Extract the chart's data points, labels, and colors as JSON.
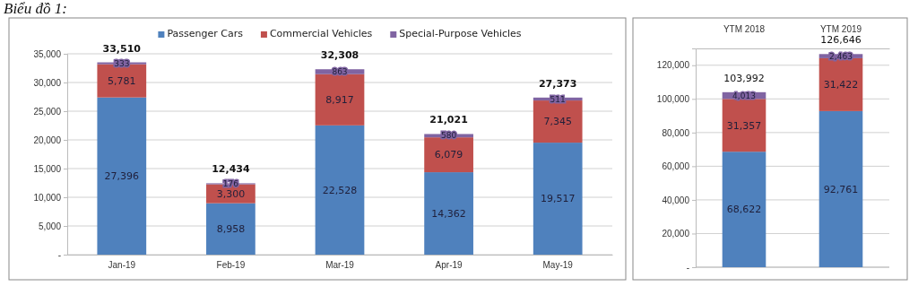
{
  "chart_data": [
    {
      "type": "bar",
      "title": "Biểu đồ 1:",
      "stacked": true,
      "categories": [
        "Jan-19",
        "Feb-19",
        "Mar-19",
        "Apr-19",
        "May-19"
      ],
      "series": [
        {
          "name": "Passenger Cars",
          "color": "#4f81bd",
          "values": [
            27396,
            8958,
            22528,
            14362,
            19517
          ],
          "value_labels": [
            "27,396",
            "8,958",
            "22,528",
            "14,362",
            "19,517"
          ]
        },
        {
          "name": "Commercial Vehicles",
          "color": "#c0504d",
          "values": [
            5781,
            3300,
            8917,
            6079,
            7345
          ],
          "value_labels": [
            "5,781",
            "3,300",
            "8,917",
            "6,079",
            "7,345"
          ]
        },
        {
          "name": "Special-Purpose Vehicles",
          "color": "#8064a2",
          "values": [
            333,
            176,
            863,
            580,
            511
          ],
          "value_labels": [
            "333",
            "176",
            "863",
            "580",
            "511"
          ]
        }
      ],
      "totals": [
        "33,510",
        "12,434",
        "32,308",
        "21,021",
        "27,373"
      ],
      "ylim": [
        0,
        35000
      ],
      "yticks": [
        {
          "value": 0,
          "label": "-"
        },
        {
          "value": 5000,
          "label": "5,000"
        },
        {
          "value": 10000,
          "label": "10,000"
        },
        {
          "value": 15000,
          "label": "15,000"
        },
        {
          "value": 20000,
          "label": "20,000"
        },
        {
          "value": 25000,
          "label": "25,000"
        },
        {
          "value": 30000,
          "label": "30,000"
        },
        {
          "value": 35000,
          "label": "35,000"
        }
      ],
      "grid": "y",
      "legend": "top"
    },
    {
      "type": "bar",
      "stacked": true,
      "categories": [
        "YTM 2018",
        "YTM 2019"
      ],
      "series": [
        {
          "color": "#4f81bd",
          "values": [
            68622,
            92761
          ],
          "value_labels": [
            "68,622",
            "92,761"
          ]
        },
        {
          "color": "#c0504d",
          "values": [
            31357,
            31422
          ],
          "value_labels": [
            "31,357",
            "31,422"
          ]
        },
        {
          "color": "#8064a2",
          "values": [
            4013,
            2463
          ],
          "value_labels": [
            "4,013",
            "2,463"
          ]
        }
      ],
      "totals": [
        "103,992",
        "126,646"
      ],
      "ylim": [
        0,
        130000
      ],
      "yticks": [
        {
          "value": 0,
          "label": "-"
        },
        {
          "value": 20000,
          "label": "20,000"
        },
        {
          "value": 40000,
          "label": "40,000"
        },
        {
          "value": 60000,
          "label": "60,000"
        },
        {
          "value": 80000,
          "label": "80,000"
        },
        {
          "value": 100000,
          "label": "100,000"
        },
        {
          "value": 120000,
          "label": "120,000"
        }
      ],
      "grid": "y"
    }
  ]
}
